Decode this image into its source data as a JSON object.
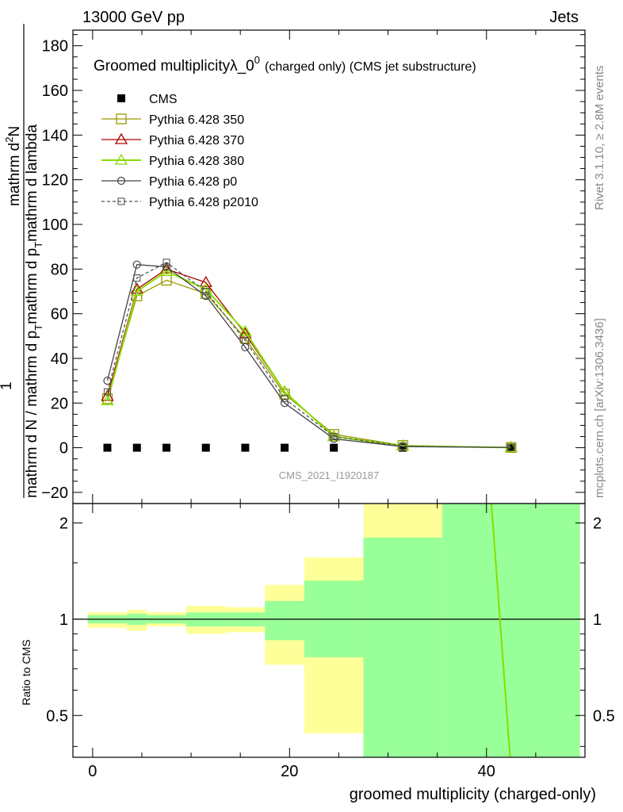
{
  "header": {
    "left": "13000 GeV pp",
    "right": "Jets"
  },
  "title_main": "Groomed multiplicityλ_0",
  "title_sup": "0",
  "title_suffix": "(charged only) (CMS jet substructure)",
  "side_label_top": "Rivet 3.1.10, ≥ 2.8M events",
  "side_label_bottom": "mcplots.cern.ch [arXiv:1306.3436]",
  "watermark": "CMS_2021_I1920187",
  "ylabel_main": {
    "numerator_prefix": "1",
    "numerator": "mathrm d",
    "numerator_sup": "2",
    "numerator_tail": "N",
    "denominator": "mathrm d N / mathrm d p",
    "denominator_sub": "T",
    "denominator_tail": "mathrm d p",
    "denominator_sub2": "T",
    "denominator_tail2": "mathrm d lambda"
  },
  "ylabel_ratio": "Ratio to CMS",
  "xlabel": "groomed multiplicity (charged-only)",
  "colors": {
    "cms": "#000000",
    "p350": "#999900",
    "p370": "#aa0000",
    "p380": "#88dd00",
    "p0": "#444444",
    "p2010": "#555555",
    "band_yellow": "#ffff99",
    "band_green": "#99ff99"
  },
  "chart_data": [
    {
      "type": "line",
      "xlim": [
        -2,
        50
      ],
      "ylim": [
        -25,
        187
      ],
      "yticks": [
        -20,
        0,
        20,
        40,
        60,
        80,
        100,
        120,
        140,
        160,
        180
      ],
      "xticks": [
        0,
        20,
        40
      ],
      "x": [
        1.5,
        4.5,
        7.5,
        11.5,
        15.5,
        19.5,
        24.5,
        31.5,
        42.5
      ],
      "series": [
        {
          "name": "CMS",
          "values": [
            0,
            0,
            0,
            0,
            0,
            0,
            0,
            0,
            0
          ]
        },
        {
          "name": "Pythia 6.428 350",
          "values": [
            22,
            68,
            75,
            69,
            49,
            24,
            6,
            1,
            0.1
          ]
        },
        {
          "name": "Pythia 6.428 370",
          "values": [
            23,
            71,
            80,
            74,
            51,
            25,
            5,
            0.8,
            0.1
          ]
        },
        {
          "name": "Pythia 6.428 380",
          "values": [
            21,
            70,
            79,
            71,
            52,
            25,
            5,
            0.8,
            0.1
          ]
        },
        {
          "name": "Pythia 6.428 p0",
          "values": [
            30,
            82,
            81,
            68,
            45,
            20,
            4,
            0.5,
            0.1
          ]
        },
        {
          "name": "Pythia 6.428 p2010",
          "values": [
            25,
            76,
            83,
            70,
            48,
            22,
            5,
            0.7,
            0.1
          ]
        }
      ],
      "legend": "top-left"
    },
    {
      "type": "area",
      "xlim": [
        -2,
        50
      ],
      "ylim": [
        0.37,
        2.3
      ],
      "yticks": [
        0.5,
        1,
        2
      ],
      "xticks": [
        0,
        20,
        40
      ],
      "bins": [
        {
          "x0": -0.5,
          "x1": 3.5,
          "y_lo": 0.94,
          "y_hi": 1.05,
          "g_lo": 0.97,
          "g_hi": 1.03
        },
        {
          "x0": 3.5,
          "x1": 5.5,
          "y_lo": 0.92,
          "y_hi": 1.07,
          "g_lo": 0.96,
          "g_hi": 1.04
        },
        {
          "x0": 5.5,
          "x1": 9.5,
          "y_lo": 0.95,
          "y_hi": 1.05,
          "g_lo": 0.97,
          "g_hi": 1.03
        },
        {
          "x0": 9.5,
          "x1": 13.5,
          "y_lo": 0.9,
          "y_hi": 1.1,
          "g_lo": 0.95,
          "g_hi": 1.05
        },
        {
          "x0": 13.5,
          "x1": 17.5,
          "y_lo": 0.91,
          "y_hi": 1.09,
          "g_lo": 0.95,
          "g_hi": 1.05
        },
        {
          "x0": 17.5,
          "x1": 21.5,
          "y_lo": 0.72,
          "y_hi": 1.28,
          "g_lo": 0.86,
          "g_hi": 1.14
        },
        {
          "x0": 21.5,
          "x1": 27.5,
          "y_lo": 0.44,
          "y_hi": 1.56,
          "g_lo": 0.76,
          "g_hi": 1.32
        },
        {
          "x0": 27.5,
          "x1": 35.5,
          "y_lo": 0.37,
          "y_hi": 2.3,
          "g_lo": 0.37,
          "g_hi": 1.8
        },
        {
          "x0": 35.5,
          "x1": 49.5,
          "y_lo": 0.37,
          "y_hi": 2.3,
          "g_lo": 0.37,
          "g_hi": 2.3
        }
      ],
      "line_p380": {
        "x": [
          40.5,
          42.4
        ],
        "values": [
          2.3,
          0.37
        ]
      }
    }
  ]
}
